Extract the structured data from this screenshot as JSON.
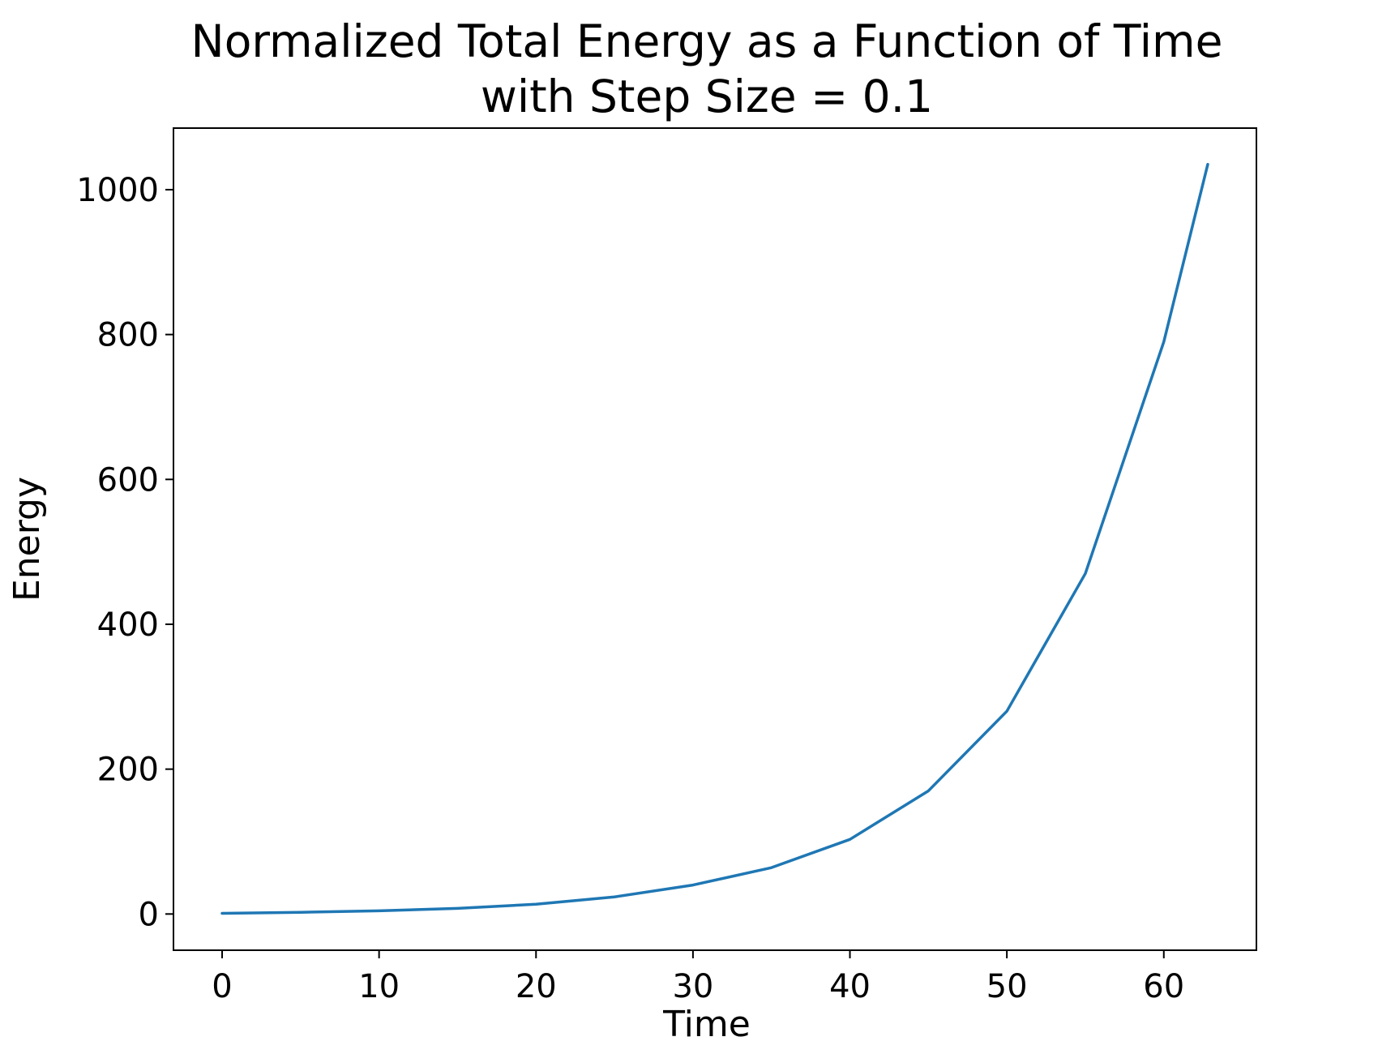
{
  "chart_data": {
    "type": "line",
    "title": "Normalized Total Energy as a Function of Time",
    "subtitle": "with Step Size = 0.1",
    "xlabel": "Time",
    "ylabel": "Energy",
    "xlim": [
      -3.1,
      65.9
    ],
    "ylim": [
      -50,
      1085
    ],
    "xticks": [
      0,
      10,
      20,
      30,
      40,
      50,
      60
    ],
    "yticks": [
      0,
      200,
      400,
      600,
      800,
      1000
    ],
    "xtick_labels": [
      "0",
      "10",
      "20",
      "30",
      "40",
      "50",
      "60"
    ],
    "ytick_labels": [
      "0",
      "200",
      "400",
      "600",
      "800",
      "1000"
    ],
    "grid": false,
    "legend": null,
    "series": [
      {
        "color": "#1f77b4",
        "x": [
          0,
          5,
          10,
          15,
          20,
          25,
          30,
          35,
          40,
          45,
          50,
          55,
          60,
          62.8
        ],
        "y": [
          1,
          2.4,
          4.4,
          7.8,
          13.5,
          23.6,
          40,
          64,
          103,
          170,
          280,
          470,
          790,
          1035
        ]
      }
    ]
  }
}
